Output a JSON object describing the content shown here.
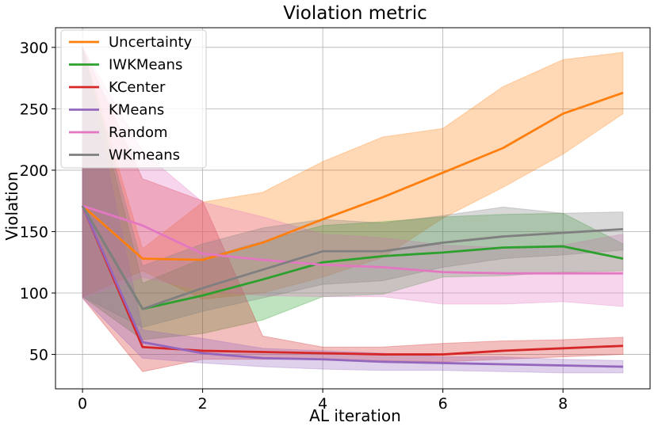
{
  "chart_data": {
    "type": "line",
    "title": "Violation metric",
    "xlabel": "AL iteration",
    "ylabel": "Violation",
    "xlim": [
      -0.45,
      9.45
    ],
    "ylim": [
      22,
      316
    ],
    "xticks": [
      0,
      2,
      4,
      6,
      8
    ],
    "yticks": [
      50,
      100,
      150,
      200,
      250,
      300
    ],
    "grid": true,
    "legend_position": "top-left",
    "x": [
      0,
      1,
      2,
      3,
      4,
      5,
      6,
      7,
      8,
      9
    ],
    "series": [
      {
        "name": "Uncertainty",
        "color": "#ff7f0e",
        "values": [
          171,
          128,
          127,
          141,
          160,
          178,
          198,
          218,
          246,
          263
        ],
        "lower": [
          97,
          118,
          95,
          100,
          113,
          129,
          161,
          186,
          213,
          246
        ],
        "upper": [
          300,
          136,
          174,
          182,
          207,
          227,
          234,
          268,
          290,
          296
        ]
      },
      {
        "name": "IWKMeans",
        "color": "#2ca02c",
        "values": [
          171,
          87,
          98,
          111,
          125,
          130,
          133,
          137,
          138,
          128
        ],
        "lower": [
          97,
          62,
          67,
          78,
          97,
          99,
          113,
          114,
          117,
          118
        ],
        "upper": [
          300,
          108,
          128,
          142,
          155,
          158,
          162,
          164,
          165,
          140
        ]
      },
      {
        "name": "KCenter",
        "color": "#d62728",
        "values": [
          171,
          56,
          53,
          52,
          51,
          50,
          50,
          53,
          55,
          57
        ],
        "lower": [
          96,
          36,
          46,
          46,
          46,
          45,
          44,
          46,
          48,
          50
        ],
        "upper": [
          300,
          193,
          175,
          65,
          56,
          56,
          59,
          61,
          62,
          64
        ]
      },
      {
        "name": "KMeans",
        "color": "#9467bd",
        "values": [
          171,
          60,
          51,
          47,
          46,
          44,
          43,
          42,
          41,
          40
        ],
        "lower": [
          96,
          47,
          43,
          40,
          38,
          37,
          37,
          36,
          35,
          35
        ],
        "upper": [
          300,
          70,
          63,
          55,
          53,
          51,
          48,
          48,
          46,
          45
        ]
      },
      {
        "name": "Random",
        "color": "#e377c2",
        "values": [
          171,
          155,
          132,
          127,
          123,
          121,
          117,
          116,
          116,
          116
        ],
        "lower": [
          96,
          113,
          102,
          98,
          97,
          97,
          91,
          91,
          93,
          89
        ],
        "upper": [
          300,
          215,
          174,
          162,
          148,
          145,
          139,
          137,
          139,
          148
        ]
      },
      {
        "name": "WKmeans",
        "color": "#7f7f7f",
        "values": [
          171,
          87,
          104,
          119,
          134,
          134,
          141,
          146,
          149,
          152
        ],
        "lower": [
          97,
          72,
          85,
          96,
          107,
          110,
          121,
          128,
          131,
          135
        ],
        "upper": [
          300,
          122,
          140,
          153,
          160,
          157,
          163,
          170,
          165,
          166
        ]
      }
    ]
  }
}
